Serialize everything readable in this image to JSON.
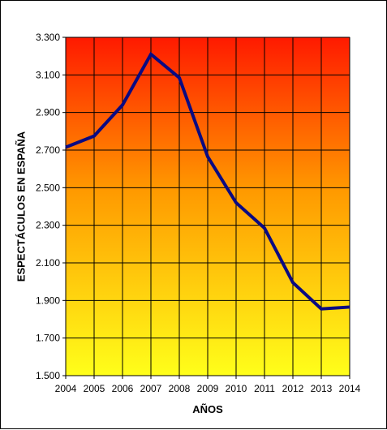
{
  "chart_data": {
    "type": "line",
    "title": "",
    "xlabel": "AÑOS",
    "ylabel": "ESPECTÁCULOS EN ESPAÑA",
    "categories": [
      "2004",
      "2005",
      "2006",
      "2007",
      "2008",
      "2009",
      "2010",
      "2011",
      "2012",
      "2013",
      "2014"
    ],
    "series": [
      {
        "values": [
          2715,
          2775,
          2940,
          3210,
          3085,
          2665,
          2420,
          2285,
          1995,
          1855,
          1865
        ]
      }
    ],
    "ylim": [
      1500,
      3300
    ],
    "yticks": [
      1500,
      1700,
      1900,
      2100,
      2300,
      2500,
      2700,
      2900,
      3100,
      3300
    ],
    "ytick_labels": [
      "1.500",
      "1.700",
      "1.900",
      "2.100",
      "2.300",
      "2.500",
      "2.700",
      "2.900",
      "3.100",
      "3.300"
    ],
    "grid": true,
    "legend": "none",
    "colors": {
      "line": "#0a0a82",
      "gradient_top": "#ff1a00",
      "gradient_bottom": "#ffff1a",
      "grid": "#000000"
    }
  }
}
